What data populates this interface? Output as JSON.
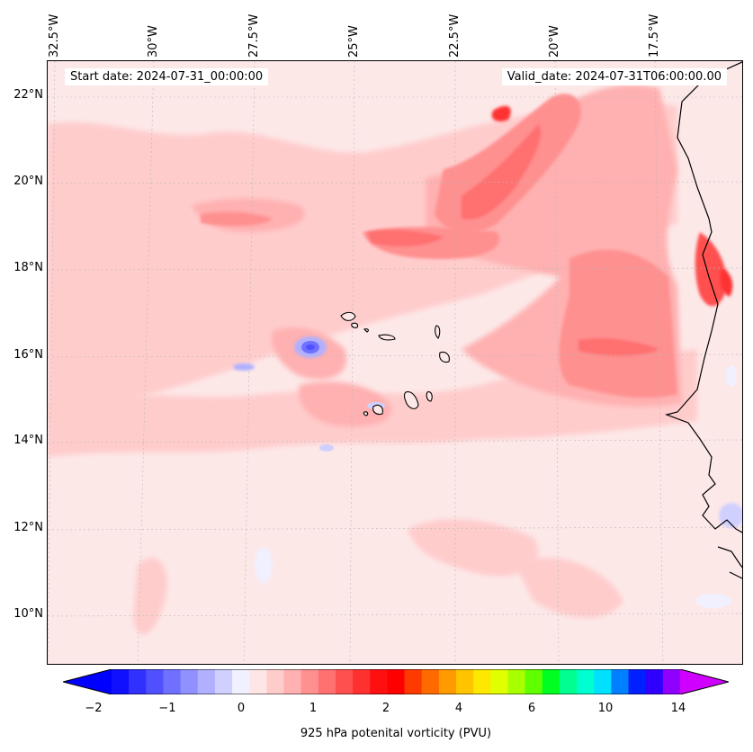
{
  "header": {
    "start_date": "Start date: 2024-07-31_00:00:00",
    "valid_date": "Valid_date: 2024-07-31T06:00:00.00"
  },
  "axes": {
    "lon_labels": [
      "32.5°W",
      "30°W",
      "27.5°W",
      "25°W",
      "22.5°W",
      "20°W",
      "17.5°W"
    ],
    "lat_labels": [
      "22°N",
      "20°N",
      "18°N",
      "16°N",
      "14°N",
      "12°N",
      "10°N"
    ]
  },
  "colorbar": {
    "title": "925 hPa potenital vorticity (PVU)",
    "tick_labels": [
      "−2",
      "−1",
      "0",
      "1",
      "2",
      "4",
      "6",
      "10",
      "14"
    ],
    "colors": [
      "#1010ff",
      "#3030ff",
      "#5050ff",
      "#7070ff",
      "#9090ff",
      "#b0b0ff",
      "#d0d0ff",
      "#f0f0ff",
      "#ffe6e6",
      "#ffcccc",
      "#ffb0b0",
      "#ff9090",
      "#ff7070",
      "#ff5050",
      "#ff3030",
      "#ff1010",
      "#ff0000",
      "#ff3a00",
      "#ff6a00",
      "#ff9a00",
      "#ffc400",
      "#ffe800",
      "#e0ff00",
      "#a8ff00",
      "#60ff00",
      "#00ff20",
      "#00ff90",
      "#00ffd0",
      "#00e0ff",
      "#0080ff",
      "#0020ff",
      "#3000ff",
      "#9000ff"
    ],
    "under_color": "#0000ff",
    "over_color": "#d000ff"
  },
  "map": {
    "background_color": "#fde8e8",
    "coastline_color": "#000000"
  }
}
